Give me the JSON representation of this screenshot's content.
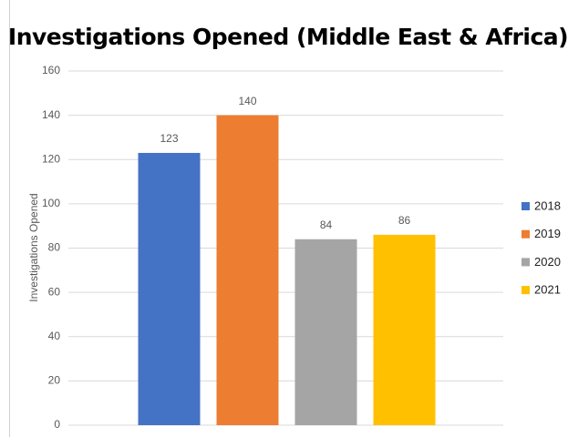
{
  "chart_data": {
    "type": "bar",
    "title": "Investigations Opened (Middle East & Africa)",
    "y_label": "Investigations Opened",
    "categories": [
      null
    ],
    "series": [
      {
        "name": "2018",
        "color": "#4472c4",
        "values": [
          123
        ]
      },
      {
        "name": "2019",
        "color": "#ed7d31",
        "values": [
          140
        ]
      },
      {
        "name": "2020",
        "color": "#a5a5a5",
        "values": [
          84
        ]
      },
      {
        "name": "2021",
        "color": "#ffc000",
        "values": [
          86
        ]
      }
    ],
    "ylim": [
      0,
      160
    ],
    "yticks": [
      0,
      20,
      40,
      60,
      80,
      100,
      120,
      140,
      160
    ],
    "grid": true,
    "legend": "right"
  }
}
